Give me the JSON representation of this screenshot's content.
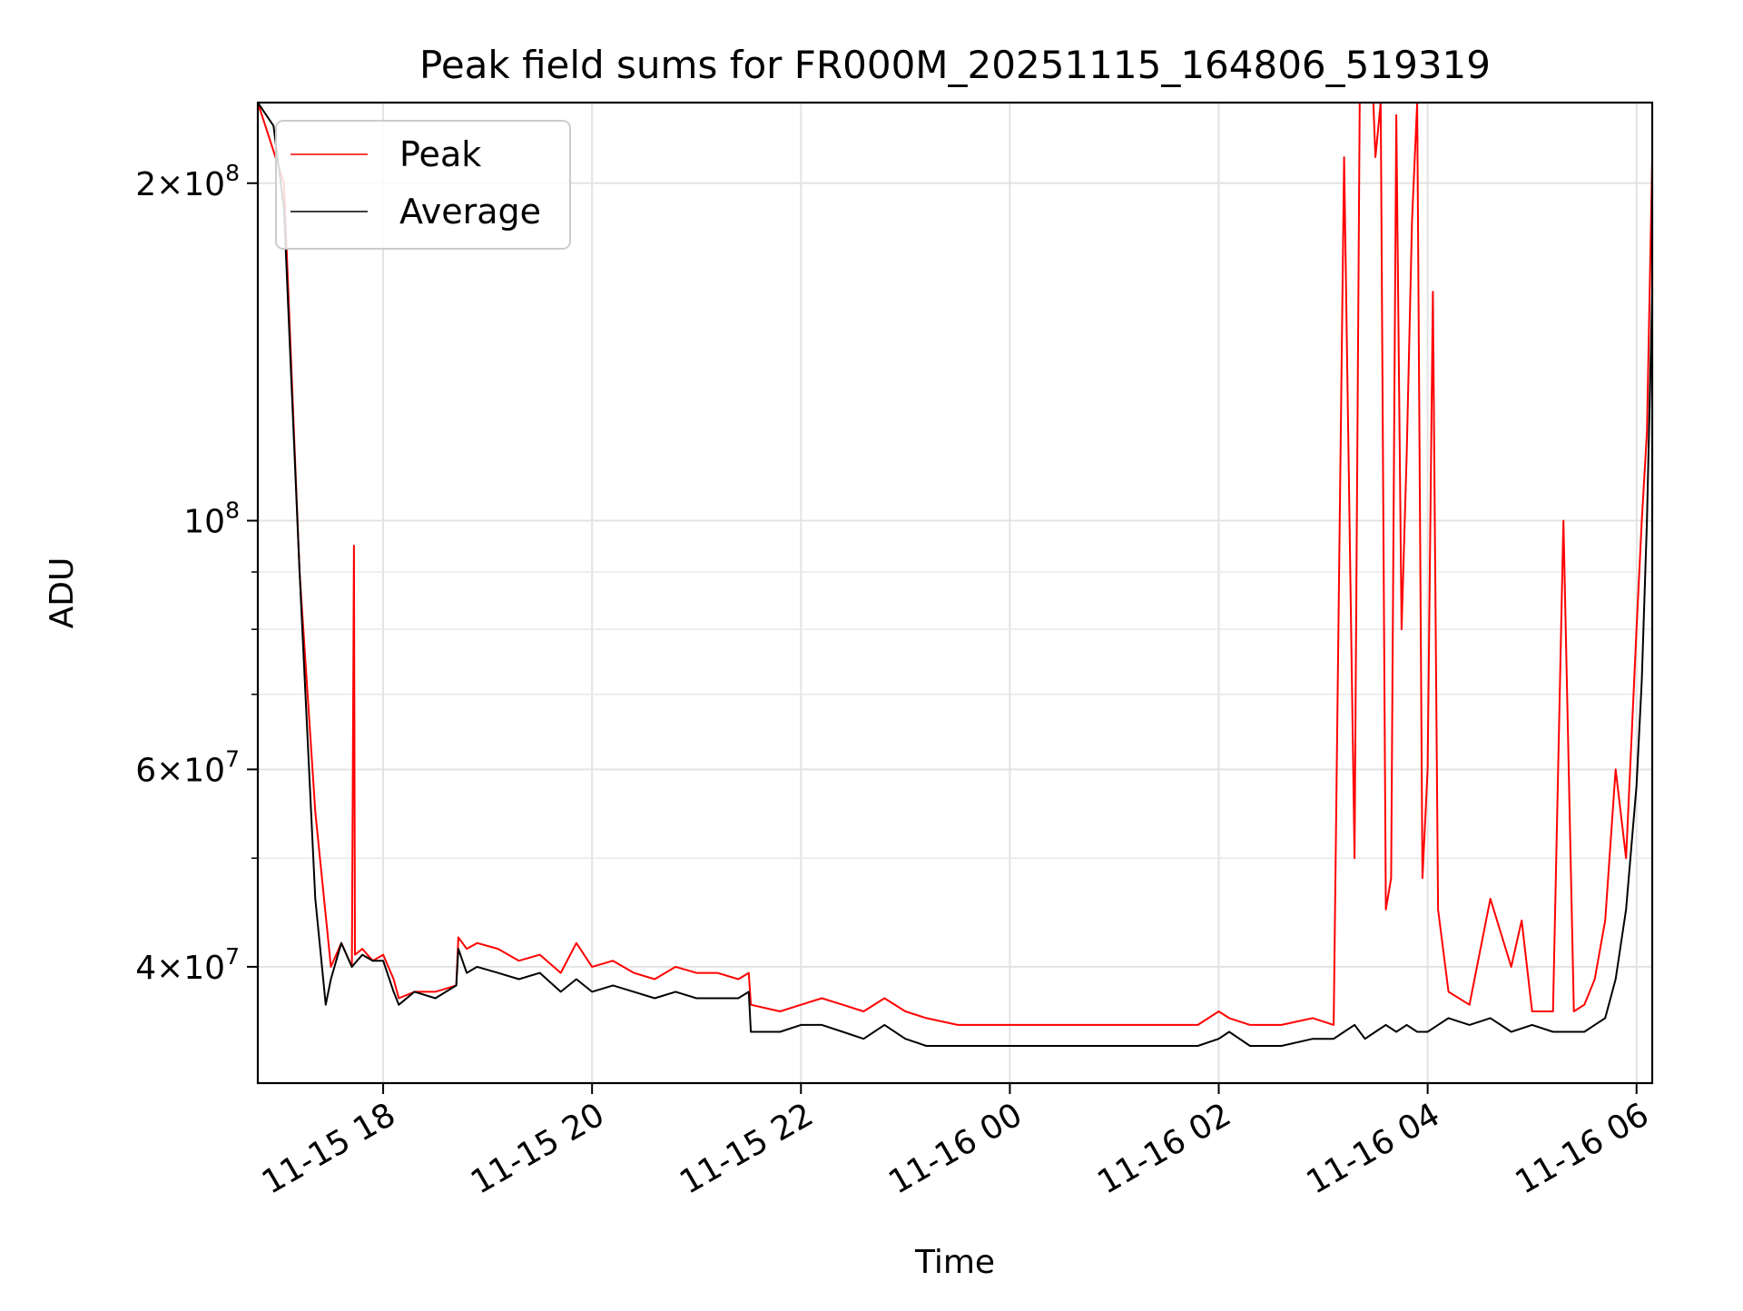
{
  "chart_data": {
    "type": "line",
    "title": "Peak field sums for FR000M_20251115_164806_519319",
    "xlabel": "Time",
    "ylabel": "ADU",
    "yscale": "log",
    "ylim": [
      31500000,
      236000000
    ],
    "xlim": [
      16.8,
      30.15
    ],
    "grid": true,
    "legend_position": "top-left",
    "x_ticks": [
      {
        "label": "11-15 18",
        "value": 18
      },
      {
        "label": "11-15 20",
        "value": 20
      },
      {
        "label": "11-15 22",
        "value": 22
      },
      {
        "label": "11-16 00",
        "value": 24
      },
      {
        "label": "11-16 02",
        "value": 26
      },
      {
        "label": "11-16 04",
        "value": 28
      },
      {
        "label": "11-16 06",
        "value": 30
      }
    ],
    "y_ticks": [
      {
        "base": "2×10",
        "exp": "8",
        "value": 200000000
      },
      {
        "base": "10",
        "exp": "8",
        "value": 100000000
      },
      {
        "base": "6×10",
        "exp": "7",
        "value": 60000000
      },
      {
        "base": "4×10",
        "exp": "7",
        "value": 40000000
      }
    ],
    "y_minor_ticks": [
      50000000,
      70000000,
      80000000,
      90000000
    ],
    "series": [
      {
        "name": "Peak",
        "color": "#ff0000",
        "x": [
          16.8,
          17.05,
          17.2,
          17.35,
          17.5,
          17.6,
          17.7,
          17.72,
          17.73,
          17.8,
          17.9,
          18.0,
          18.1,
          18.15,
          18.3,
          18.5,
          18.7,
          18.72,
          18.8,
          18.9,
          19.1,
          19.3,
          19.5,
          19.7,
          19.85,
          20.0,
          20.2,
          20.4,
          20.6,
          20.8,
          21.0,
          21.2,
          21.4,
          21.5,
          21.52,
          21.8,
          22.0,
          22.2,
          22.4,
          22.6,
          22.8,
          23.0,
          23.2,
          23.5,
          23.8,
          24.0,
          24.3,
          24.6,
          24.9,
          25.2,
          25.5,
          25.8,
          26.0,
          26.1,
          26.3,
          26.6,
          26.9,
          27.1,
          27.2,
          27.3,
          27.35,
          27.4,
          27.45,
          27.48,
          27.5,
          27.55,
          27.6,
          27.65,
          27.7,
          27.75,
          27.8,
          27.85,
          27.9,
          27.95,
          28.0,
          28.05,
          28.1,
          28.2,
          28.4,
          28.6,
          28.8,
          28.9,
          29.0,
          29.2,
          29.3,
          29.4,
          29.5,
          29.6,
          29.7,
          29.8,
          29.9,
          30.0,
          30.05,
          30.1,
          30.15
        ],
        "y": [
          236000000,
          200000000,
          90000000,
          55000000,
          40000000,
          42000000,
          40000000,
          95000000,
          41000000,
          41500000,
          40500000,
          41000000,
          39000000,
          37500000,
          38000000,
          38000000,
          38500000,
          42500000,
          41500000,
          42000000,
          41500000,
          40500000,
          41000000,
          39500000,
          42000000,
          40000000,
          40500000,
          39500000,
          39000000,
          40000000,
          39500000,
          39500000,
          39000000,
          39500000,
          37000000,
          36500000,
          37000000,
          37500000,
          37000000,
          36500000,
          37500000,
          36500000,
          36000000,
          35500000,
          35500000,
          35500000,
          35500000,
          35500000,
          35500000,
          35500000,
          35500000,
          35500000,
          36500000,
          36000000,
          35500000,
          35500000,
          36000000,
          35500000,
          211000000,
          50000000,
          236000000,
          236000000,
          236000000,
          236000000,
          211000000,
          236000000,
          45000000,
          48000000,
          230000000,
          80000000,
          115000000,
          185000000,
          236000000,
          48000000,
          60000000,
          160000000,
          45000000,
          38000000,
          37000000,
          46000000,
          40000000,
          44000000,
          36500000,
          36500000,
          100000000,
          36500000,
          37000000,
          39000000,
          44000000,
          60000000,
          50000000,
          80000000,
          100000000,
          120000000,
          210000000
        ]
      },
      {
        "name": "Average",
        "color": "#000000",
        "x": [
          16.8,
          16.95,
          17.05,
          17.2,
          17.35,
          17.45,
          17.5,
          17.6,
          17.7,
          17.8,
          17.9,
          18.0,
          18.1,
          18.15,
          18.3,
          18.5,
          18.7,
          18.72,
          18.8,
          18.9,
          19.1,
          19.3,
          19.5,
          19.7,
          19.85,
          20.0,
          20.2,
          20.4,
          20.6,
          20.8,
          21.0,
          21.2,
          21.4,
          21.5,
          21.52,
          21.8,
          22.0,
          22.2,
          22.4,
          22.6,
          22.8,
          23.0,
          23.2,
          23.5,
          23.8,
          24.0,
          24.3,
          24.6,
          24.9,
          25.2,
          25.5,
          25.8,
          26.0,
          26.1,
          26.3,
          26.6,
          26.9,
          27.1,
          27.2,
          27.3,
          27.4,
          27.5,
          27.6,
          27.7,
          27.8,
          27.9,
          28.0,
          28.1,
          28.2,
          28.4,
          28.6,
          28.8,
          29.0,
          29.2,
          29.4,
          29.5,
          29.6,
          29.7,
          29.8,
          29.9,
          30.0,
          30.05,
          30.1,
          30.15
        ],
        "y": [
          236000000,
          225000000,
          190000000,
          90000000,
          46000000,
          37000000,
          39000000,
          42000000,
          40000000,
          41000000,
          40500000,
          40500000,
          38000000,
          37000000,
          38000000,
          37500000,
          38500000,
          41500000,
          39500000,
          40000000,
          39500000,
          39000000,
          39500000,
          38000000,
          39000000,
          38000000,
          38500000,
          38000000,
          37500000,
          38000000,
          37500000,
          37500000,
          37500000,
          38000000,
          35000000,
          35000000,
          35500000,
          35500000,
          35000000,
          34500000,
          35500000,
          34500000,
          34000000,
          34000000,
          34000000,
          34000000,
          34000000,
          34000000,
          34000000,
          34000000,
          34000000,
          34000000,
          34500000,
          35000000,
          34000000,
          34000000,
          34500000,
          34500000,
          35000000,
          35500000,
          34500000,
          35000000,
          35500000,
          35000000,
          35500000,
          35000000,
          35000000,
          35500000,
          36000000,
          35500000,
          36000000,
          35000000,
          35500000,
          35000000,
          35000000,
          35000000,
          35500000,
          36000000,
          39000000,
          45000000,
          58000000,
          72000000,
          100000000,
          160000000
        ]
      }
    ]
  }
}
